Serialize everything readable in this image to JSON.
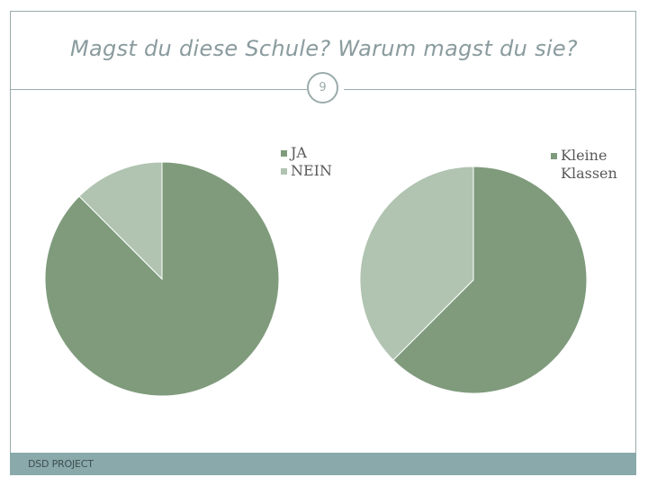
{
  "slide": {
    "title": "Magst du diese Schule? Warum magst du sie?",
    "number": "9",
    "footer": "DSD PROJECT"
  },
  "colors": {
    "primary": "#7f9b7c",
    "secondary": "#b0c4b1",
    "frame": "#9aabab",
    "footer": "#8aa9ab"
  },
  "chart_data": [
    {
      "type": "pie",
      "slices": [
        {
          "label": "JA",
          "value": 87.5,
          "color": "#7f9b7c"
        },
        {
          "label": "NEIN",
          "value": 12.5,
          "color": "#b0c4b1"
        }
      ],
      "legend": [
        "JA",
        "NEIN"
      ],
      "legend_position": "top-right"
    },
    {
      "type": "pie",
      "slices": [
        {
          "label": "Kleine Klassen",
          "value": 62.5,
          "color": "#7f9b7c"
        },
        {
          "label": "",
          "value": 37.5,
          "color": "#b0c4b1"
        }
      ],
      "legend": [
        "Kleine Klassen"
      ],
      "legend_position": "top-right"
    }
  ]
}
